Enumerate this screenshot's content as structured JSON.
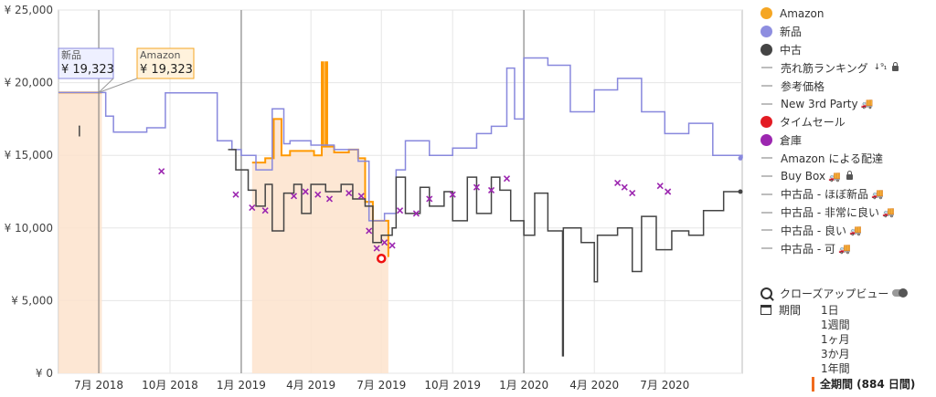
{
  "chart_data": {
    "type": "line",
    "currency_prefix": "¥",
    "ylim": [
      0,
      25000
    ],
    "y_ticks": [
      {
        "value": 0,
        "label": "¥ 0"
      },
      {
        "value": 5000,
        "label": "¥ 5,000"
      },
      {
        "value": 10000,
        "label": "¥ 10,000"
      },
      {
        "value": 15000,
        "label": "¥ 15,000"
      },
      {
        "value": 20000,
        "label": "¥ 20,000"
      },
      {
        "value": 25000,
        "label": "¥ 25,000"
      }
    ],
    "xlim": [
      "2018-05-10",
      "2020-10-09"
    ],
    "x_ticks": [
      {
        "date": "2018-07-01",
        "label": "7月 2018",
        "major": false
      },
      {
        "date": "2018-10-01",
        "label": "10月 2018",
        "major": false
      },
      {
        "date": "2019-01-01",
        "label": "1月 2019",
        "major": true
      },
      {
        "date": "2019-04-01",
        "label": "4月 2019",
        "major": false
      },
      {
        "date": "2019-07-01",
        "label": "7月 2019",
        "major": false
      },
      {
        "date": "2019-10-01",
        "label": "10月 2019",
        "major": false
      },
      {
        "date": "2020-01-01",
        "label": "1月 2020",
        "major": true
      },
      {
        "date": "2020-04-01",
        "label": "4月 2020",
        "major": false
      },
      {
        "date": "2020-07-01",
        "label": "7月 2020",
        "major": false
      }
    ],
    "grid": true,
    "legend_position": "right",
    "cursor_date": "2018-07-01",
    "tooltips": [
      {
        "series": "新品",
        "value_label": "¥ 19,323"
      },
      {
        "series": "Amazon",
        "value_label": "¥ 19,323"
      }
    ],
    "series": [
      {
        "name": "Amazon",
        "color": "#ff9900",
        "style": "step-area",
        "points": [
          [
            "2018-05-10",
            19323
          ],
          [
            "2018-07-05",
            19323
          ],
          [
            "2018-07-05",
            null
          ],
          [
            "2019-01-15",
            null
          ],
          [
            "2019-01-15",
            14500
          ],
          [
            "2019-02-01",
            14800
          ],
          [
            "2019-02-12",
            17500
          ],
          [
            "2019-02-22",
            15000
          ],
          [
            "2019-03-05",
            15300
          ],
          [
            "2019-04-05",
            15000
          ],
          [
            "2019-04-15",
            21400
          ],
          [
            "2019-04-17",
            15600
          ],
          [
            "2019-04-20",
            21400
          ],
          [
            "2019-04-22",
            15600
          ],
          [
            "2019-05-01",
            15200
          ],
          [
            "2019-05-20",
            15400
          ],
          [
            "2019-06-01",
            14800
          ],
          [
            "2019-06-10",
            11800
          ],
          [
            "2019-06-20",
            10500
          ],
          [
            "2019-07-10",
            8000
          ]
        ]
      },
      {
        "name": "新品",
        "color": "#8888dd",
        "style": "step",
        "points": [
          [
            "2018-05-10",
            19323
          ],
          [
            "2018-07-05",
            19323
          ],
          [
            "2018-07-10",
            17700
          ],
          [
            "2018-07-20",
            16600
          ],
          [
            "2018-09-01",
            16900
          ],
          [
            "2018-09-25",
            19300
          ],
          [
            "2018-12-01",
            16000
          ],
          [
            "2018-12-20",
            15400
          ],
          [
            "2019-01-01",
            15000
          ],
          [
            "2019-01-20",
            14000
          ],
          [
            "2019-02-10",
            18200
          ],
          [
            "2019-02-25",
            15800
          ],
          [
            "2019-03-05",
            16000
          ],
          [
            "2019-04-01",
            15700
          ],
          [
            "2019-05-01",
            15400
          ],
          [
            "2019-06-01",
            14600
          ],
          [
            "2019-06-15",
            10500
          ],
          [
            "2019-07-05",
            11000
          ],
          [
            "2019-07-20",
            14000
          ],
          [
            "2019-08-01",
            16000
          ],
          [
            "2019-09-01",
            15000
          ],
          [
            "2019-10-01",
            15500
          ],
          [
            "2019-11-01",
            16500
          ],
          [
            "2019-11-20",
            17000
          ],
          [
            "2019-12-10",
            21000
          ],
          [
            "2019-12-20",
            17500
          ],
          [
            "2020-01-01",
            21700
          ],
          [
            "2020-02-01",
            21200
          ],
          [
            "2020-03-01",
            18000
          ],
          [
            "2020-04-01",
            19500
          ],
          [
            "2020-05-01",
            20300
          ],
          [
            "2020-06-01",
            18000
          ],
          [
            "2020-07-01",
            16500
          ],
          [
            "2020-08-01",
            17200
          ],
          [
            "2020-09-01",
            15000
          ],
          [
            "2020-10-09",
            14800
          ]
        ]
      },
      {
        "name": "中古",
        "color": "#444444",
        "style": "step",
        "points": [
          [
            "2018-06-05",
            17000
          ],
          [
            "2018-06-06",
            16300
          ],
          [
            "2018-06-06",
            null
          ],
          [
            "2018-12-15",
            null
          ],
          [
            "2018-12-15",
            15400
          ],
          [
            "2018-12-25",
            14000
          ],
          [
            "2019-01-10",
            12600
          ],
          [
            "2019-01-20",
            11500
          ],
          [
            "2019-02-01",
            13000
          ],
          [
            "2019-02-10",
            9800
          ],
          [
            "2019-02-25",
            12400
          ],
          [
            "2019-03-10",
            13000
          ],
          [
            "2019-03-20",
            11000
          ],
          [
            "2019-04-01",
            13000
          ],
          [
            "2019-04-20",
            12500
          ],
          [
            "2019-05-10",
            13000
          ],
          [
            "2019-05-25",
            12000
          ],
          [
            "2019-06-10",
            11500
          ],
          [
            "2019-06-20",
            9000
          ],
          [
            "2019-07-01",
            9500
          ],
          [
            "2019-07-15",
            10000
          ],
          [
            "2019-07-20",
            13500
          ],
          [
            "2019-08-01",
            11000
          ],
          [
            "2019-08-20",
            12800
          ],
          [
            "2019-09-01",
            11500
          ],
          [
            "2019-09-20",
            12500
          ],
          [
            "2019-10-01",
            10500
          ],
          [
            "2019-10-20",
            13500
          ],
          [
            "2019-11-01",
            11000
          ],
          [
            "2019-11-20",
            13500
          ],
          [
            "2019-12-01",
            12600
          ],
          [
            "2019-12-15",
            10500
          ],
          [
            "2020-01-01",
            9500
          ],
          [
            "2020-01-15",
            12400
          ],
          [
            "2020-02-01",
            9800
          ],
          [
            "2020-02-20",
            1200
          ],
          [
            "2020-02-21",
            10000
          ],
          [
            "2020-03-15",
            9000
          ],
          [
            "2020-04-01",
            6300
          ],
          [
            "2020-04-05",
            9500
          ],
          [
            "2020-05-01",
            10000
          ],
          [
            "2020-05-20",
            7000
          ],
          [
            "2020-06-01",
            10800
          ],
          [
            "2020-06-20",
            8500
          ],
          [
            "2020-07-10",
            9800
          ],
          [
            "2020-08-01",
            9500
          ],
          [
            "2020-08-20",
            11200
          ],
          [
            "2020-09-15",
            12500
          ],
          [
            "2020-10-09",
            12500
          ]
        ]
      },
      {
        "name": "倉庫",
        "color": "#9c27b0",
        "style": "markers",
        "points": [
          [
            "2018-09-20",
            13900
          ],
          [
            "2018-12-25",
            12300
          ],
          [
            "2019-01-15",
            11400
          ],
          [
            "2019-02-01",
            11200
          ],
          [
            "2019-03-10",
            12200
          ],
          [
            "2019-03-25",
            12500
          ],
          [
            "2019-04-10",
            12300
          ],
          [
            "2019-04-25",
            12000
          ],
          [
            "2019-05-20",
            12400
          ],
          [
            "2019-06-05",
            12200
          ],
          [
            "2019-06-15",
            9800
          ],
          [
            "2019-06-25",
            8600
          ],
          [
            "2019-07-05",
            9000
          ],
          [
            "2019-07-15",
            8800
          ],
          [
            "2019-07-25",
            11200
          ],
          [
            "2019-08-15",
            11000
          ],
          [
            "2019-09-01",
            12000
          ],
          [
            "2019-10-01",
            12300
          ],
          [
            "2019-11-01",
            12800
          ],
          [
            "2019-11-20",
            12600
          ],
          [
            "2019-12-10",
            13400
          ],
          [
            "2020-05-01",
            13100
          ],
          [
            "2020-05-10",
            12800
          ],
          [
            "2020-05-20",
            12400
          ],
          [
            "2020-06-25",
            12900
          ],
          [
            "2020-07-05",
            12500
          ]
        ]
      },
      {
        "name": "タイムセール",
        "color": "#ee1111",
        "style": "markers",
        "points": [
          [
            "2019-07-01",
            7900
          ]
        ]
      }
    ]
  },
  "legend": [
    {
      "label": "Amazon",
      "kind": "dot",
      "color": "#f5a623"
    },
    {
      "label": "新品",
      "kind": "dot",
      "color": "#8e8ee0"
    },
    {
      "label": "中古",
      "kind": "dot",
      "color": "#444444"
    },
    {
      "label": "売れ筋ランキング",
      "kind": "line",
      "extra": "sort-lock"
    },
    {
      "label": "参考価格",
      "kind": "line"
    },
    {
      "label": "New 3rd Party",
      "kind": "line",
      "extra": "truck"
    },
    {
      "label": "タイムセール",
      "kind": "dot",
      "color": "#e31b23"
    },
    {
      "label": "倉庫",
      "kind": "dot",
      "color": "#9c27b0"
    },
    {
      "label": "Amazon による配達",
      "kind": "line"
    },
    {
      "label": "Buy Box",
      "kind": "line",
      "extra": "truck-lock"
    },
    {
      "label": "中古品 - ほぼ新品",
      "kind": "line",
      "extra": "truck"
    },
    {
      "label": "中古品 - 非常に良い",
      "kind": "line",
      "extra": "truck"
    },
    {
      "label": "中古品 - 良い",
      "kind": "line",
      "extra": "truck"
    },
    {
      "label": "中古品 - 可",
      "kind": "line",
      "extra": "truck"
    }
  ],
  "controls": {
    "closeup_label": "クローズアップビュー",
    "period_label": "期間",
    "periods": [
      "1日",
      "1週間",
      "1ヶ月",
      "3か月",
      "1年間"
    ],
    "active_period": "全期間 (884 日間)"
  },
  "icons": {
    "truck": "🚚",
    "sort": "↓⁹₁"
  }
}
